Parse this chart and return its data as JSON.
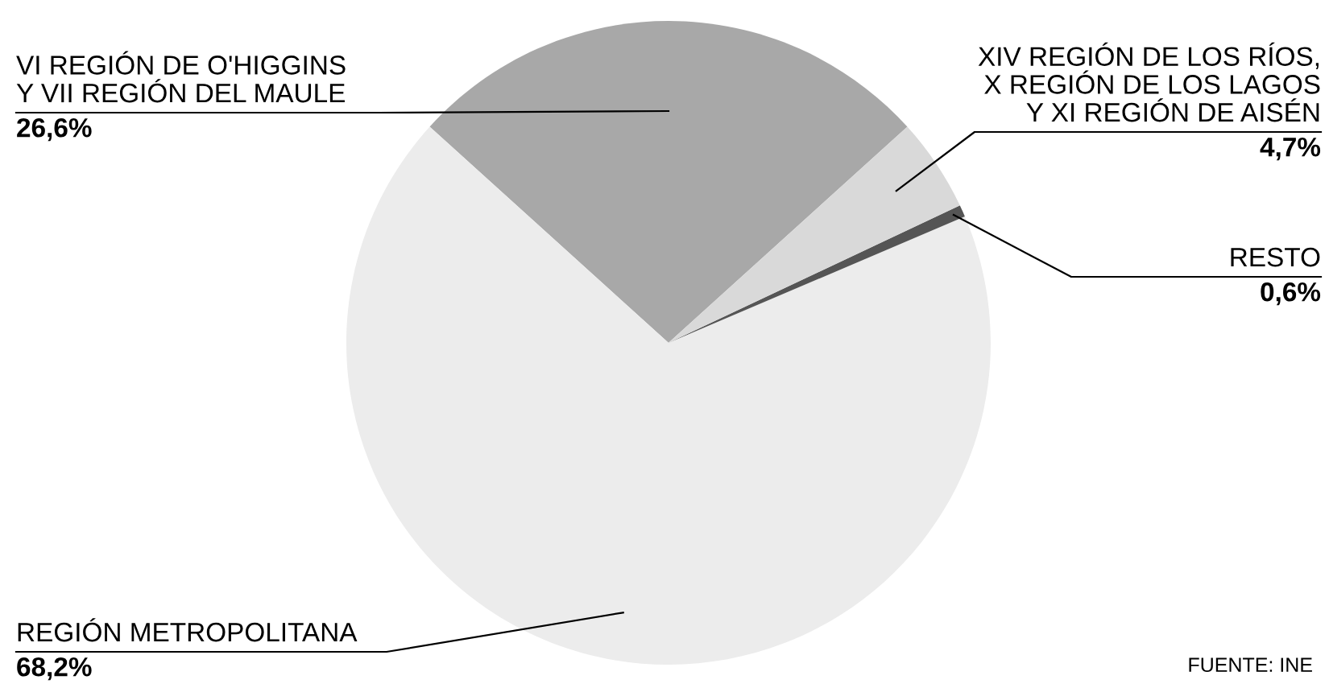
{
  "chart_data": {
    "type": "pie",
    "categories": [
      "VI REGIÓN DE O'HIGGINS\nY VII REGIÓN DEL MAULE",
      "REGIÓN METROPOLITANA",
      "RESTO",
      "XIV REGIÓN DE LOS RÍOS,\nX REGIÓN DE LOS LAGOS\nY XI REGIÓN DE AISÉN"
    ],
    "values": [
      26.6,
      68.2,
      0.6,
      4.7
    ],
    "value_labels": [
      "26,6%",
      "68,2%",
      "0,6%",
      "4,7%"
    ],
    "colors": [
      "#a8a8a8",
      "#ececec",
      "#555555",
      "#d9d9d9"
    ],
    "annotations": [
      "FUENTE: INE"
    ]
  }
}
